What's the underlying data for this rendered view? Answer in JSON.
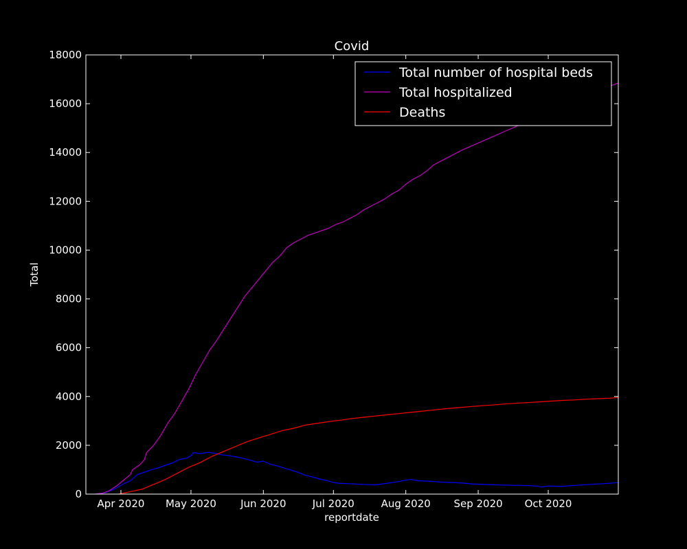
{
  "chart_data": {
    "type": "line",
    "title": "Covid",
    "xlabel": "reportdate",
    "ylabel": "Total",
    "ylim": [
      0,
      18000
    ],
    "xlim": [
      "2020-03-17",
      "2020-10-31"
    ],
    "y_ticks": [
      0,
      2000,
      4000,
      6000,
      8000,
      10000,
      12000,
      14000,
      16000,
      18000
    ],
    "x_ticks": [
      {
        "date": "2020-04-01",
        "label": "Apr 2020"
      },
      {
        "date": "2020-05-01",
        "label": "May 2020"
      },
      {
        "date": "2020-06-01",
        "label": "Jun 2020"
      },
      {
        "date": "2020-07-01",
        "label": "Jul 2020"
      },
      {
        "date": "2020-08-01",
        "label": "Aug 2020"
      },
      {
        "date": "2020-09-01",
        "label": "Sep 2020"
      },
      {
        "date": "2020-10-01",
        "label": "Oct 2020"
      }
    ],
    "grid": false,
    "legend": "top-right",
    "colors": {
      "background": "#000000",
      "axes": "#ffffff",
      "text": "#ffffff"
    },
    "series": [
      {
        "name": "Total number of hospital beds",
        "color": "#0000ff",
        "points": [
          [
            "2020-03-21",
            0
          ],
          [
            "2020-03-25",
            50
          ],
          [
            "2020-03-29",
            200
          ],
          [
            "2020-04-02",
            420
          ],
          [
            "2020-04-05",
            550
          ],
          [
            "2020-04-08",
            800
          ],
          [
            "2020-04-11",
            900
          ],
          [
            "2020-04-14",
            1000
          ],
          [
            "2020-04-17",
            1080
          ],
          [
            "2020-04-20",
            1180
          ],
          [
            "2020-04-23",
            1280
          ],
          [
            "2020-04-26",
            1420
          ],
          [
            "2020-04-29",
            1470
          ],
          [
            "2020-05-01",
            1580
          ],
          [
            "2020-05-02",
            1700
          ],
          [
            "2020-05-05",
            1660
          ],
          [
            "2020-05-08",
            1710
          ],
          [
            "2020-05-11",
            1680
          ],
          [
            "2020-05-14",
            1610
          ],
          [
            "2020-05-17",
            1580
          ],
          [
            "2020-05-20",
            1530
          ],
          [
            "2020-05-23",
            1470
          ],
          [
            "2020-05-26",
            1400
          ],
          [
            "2020-05-29",
            1310
          ],
          [
            "2020-06-01",
            1350
          ],
          [
            "2020-06-04",
            1220
          ],
          [
            "2020-06-07",
            1150
          ],
          [
            "2020-06-10",
            1060
          ],
          [
            "2020-06-13",
            980
          ],
          [
            "2020-06-16",
            880
          ],
          [
            "2020-06-19",
            770
          ],
          [
            "2020-06-22",
            700
          ],
          [
            "2020-06-25",
            620
          ],
          [
            "2020-06-28",
            560
          ],
          [
            "2020-07-01",
            470
          ],
          [
            "2020-07-04",
            440
          ],
          [
            "2020-07-07",
            430
          ],
          [
            "2020-07-13",
            400
          ],
          [
            "2020-07-19",
            380
          ],
          [
            "2020-07-22",
            420
          ],
          [
            "2020-07-28",
            500
          ],
          [
            "2020-08-01",
            570
          ],
          [
            "2020-08-03",
            600
          ],
          [
            "2020-08-06",
            550
          ],
          [
            "2020-08-12",
            520
          ],
          [
            "2020-08-18",
            480
          ],
          [
            "2020-08-24",
            460
          ],
          [
            "2020-08-30",
            410
          ],
          [
            "2020-09-05",
            390
          ],
          [
            "2020-09-11",
            370
          ],
          [
            "2020-09-17",
            360
          ],
          [
            "2020-09-23",
            350
          ],
          [
            "2020-09-26",
            330
          ],
          [
            "2020-09-28",
            290
          ],
          [
            "2020-10-01",
            330
          ],
          [
            "2020-10-07",
            320
          ],
          [
            "2020-10-13",
            360
          ],
          [
            "2020-10-19",
            400
          ],
          [
            "2020-10-25",
            430
          ],
          [
            "2020-10-31",
            470
          ]
        ]
      },
      {
        "name": "Total hospitalized",
        "color": "#bf00bf",
        "points": [
          [
            "2020-03-21",
            0
          ],
          [
            "2020-03-24",
            30
          ],
          [
            "2020-03-27",
            140
          ],
          [
            "2020-03-30",
            330
          ],
          [
            "2020-04-02",
            560
          ],
          [
            "2020-04-05",
            800
          ],
          [
            "2020-04-06",
            1000
          ],
          [
            "2020-04-09",
            1200
          ],
          [
            "2020-04-11",
            1400
          ],
          [
            "2020-04-12",
            1700
          ],
          [
            "2020-04-15",
            2000
          ],
          [
            "2020-04-18",
            2400
          ],
          [
            "2020-04-21",
            2900
          ],
          [
            "2020-04-24",
            3300
          ],
          [
            "2020-04-27",
            3800
          ],
          [
            "2020-04-30",
            4300
          ],
          [
            "2020-05-03",
            4900
          ],
          [
            "2020-05-06",
            5400
          ],
          [
            "2020-05-09",
            5900
          ],
          [
            "2020-05-12",
            6300
          ],
          [
            "2020-05-15",
            6750
          ],
          [
            "2020-05-18",
            7200
          ],
          [
            "2020-05-21",
            7650
          ],
          [
            "2020-05-24",
            8100
          ],
          [
            "2020-05-27",
            8450
          ],
          [
            "2020-05-30",
            8800
          ],
          [
            "2020-06-02",
            9150
          ],
          [
            "2020-06-05",
            9500
          ],
          [
            "2020-06-08",
            9750
          ],
          [
            "2020-06-11",
            10100
          ],
          [
            "2020-06-14",
            10300
          ],
          [
            "2020-06-17",
            10450
          ],
          [
            "2020-06-20",
            10600
          ],
          [
            "2020-06-23",
            10700
          ],
          [
            "2020-06-26",
            10800
          ],
          [
            "2020-06-29",
            10900
          ],
          [
            "2020-07-02",
            11050
          ],
          [
            "2020-07-05",
            11150
          ],
          [
            "2020-07-08",
            11300
          ],
          [
            "2020-07-11",
            11450
          ],
          [
            "2020-07-14",
            11650
          ],
          [
            "2020-07-17",
            11800
          ],
          [
            "2020-07-20",
            11950
          ],
          [
            "2020-07-23",
            12100
          ],
          [
            "2020-07-26",
            12300
          ],
          [
            "2020-07-29",
            12450
          ],
          [
            "2020-08-01",
            12700
          ],
          [
            "2020-08-04",
            12900
          ],
          [
            "2020-08-07",
            13050
          ],
          [
            "2020-08-10",
            13250
          ],
          [
            "2020-08-13",
            13500
          ],
          [
            "2020-08-16",
            13650
          ],
          [
            "2020-08-19",
            13800
          ],
          [
            "2020-08-25",
            14100
          ],
          [
            "2020-08-31",
            14350
          ],
          [
            "2020-09-06",
            14600
          ],
          [
            "2020-09-12",
            14850
          ],
          [
            "2020-09-18",
            15100
          ],
          [
            "2020-09-24",
            15350
          ],
          [
            "2020-09-30",
            15600
          ],
          [
            "2020-10-06",
            15850
          ],
          [
            "2020-10-12",
            16100
          ],
          [
            "2020-10-18",
            16350
          ],
          [
            "2020-10-24",
            16600
          ],
          [
            "2020-10-31",
            16850
          ]
        ]
      },
      {
        "name": "Deaths",
        "color": "#ff0000",
        "points": [
          [
            "2020-03-31",
            0
          ],
          [
            "2020-04-05",
            100
          ],
          [
            "2020-04-10",
            200
          ],
          [
            "2020-04-15",
            400
          ],
          [
            "2020-04-20",
            600
          ],
          [
            "2020-04-25",
            850
          ],
          [
            "2020-04-30",
            1100
          ],
          [
            "2020-05-05",
            1300
          ],
          [
            "2020-05-10",
            1550
          ],
          [
            "2020-05-15",
            1750
          ],
          [
            "2020-05-20",
            1950
          ],
          [
            "2020-05-25",
            2150
          ],
          [
            "2020-05-30",
            2300
          ],
          [
            "2020-06-04",
            2450
          ],
          [
            "2020-06-09",
            2600
          ],
          [
            "2020-06-14",
            2700
          ],
          [
            "2020-06-19",
            2830
          ],
          [
            "2020-06-24",
            2900
          ],
          [
            "2020-06-29",
            2970
          ],
          [
            "2020-07-04",
            3030
          ],
          [
            "2020-07-09",
            3100
          ],
          [
            "2020-07-14",
            3150
          ],
          [
            "2020-07-19",
            3200
          ],
          [
            "2020-07-24",
            3250
          ],
          [
            "2020-07-29",
            3300
          ],
          [
            "2020-08-03",
            3350
          ],
          [
            "2020-08-08",
            3400
          ],
          [
            "2020-08-13",
            3450
          ],
          [
            "2020-08-18",
            3500
          ],
          [
            "2020-08-23",
            3540
          ],
          [
            "2020-08-28",
            3580
          ],
          [
            "2020-09-02",
            3620
          ],
          [
            "2020-09-07",
            3650
          ],
          [
            "2020-09-12",
            3690
          ],
          [
            "2020-09-17",
            3720
          ],
          [
            "2020-09-22",
            3750
          ],
          [
            "2020-09-27",
            3780
          ],
          [
            "2020-10-02",
            3810
          ],
          [
            "2020-10-07",
            3840
          ],
          [
            "2020-10-12",
            3860
          ],
          [
            "2020-10-17",
            3890
          ],
          [
            "2020-10-22",
            3910
          ],
          [
            "2020-10-27",
            3930
          ],
          [
            "2020-10-31",
            3960
          ]
        ]
      }
    ]
  }
}
